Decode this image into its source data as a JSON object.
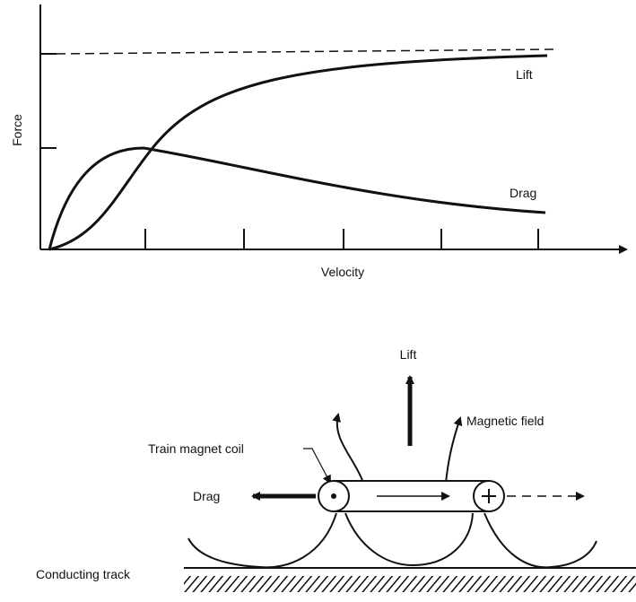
{
  "chart": {
    "y_label": "Force",
    "x_label": "Velocity",
    "curves": [
      {
        "label": "Lift"
      },
      {
        "label": "Drag"
      }
    ]
  },
  "diagram": {
    "lift": "Lift",
    "magnetic_field": "Magnetic field",
    "coil": "Train magnet coil",
    "drag": "Drag",
    "track": "Conducting track"
  }
}
